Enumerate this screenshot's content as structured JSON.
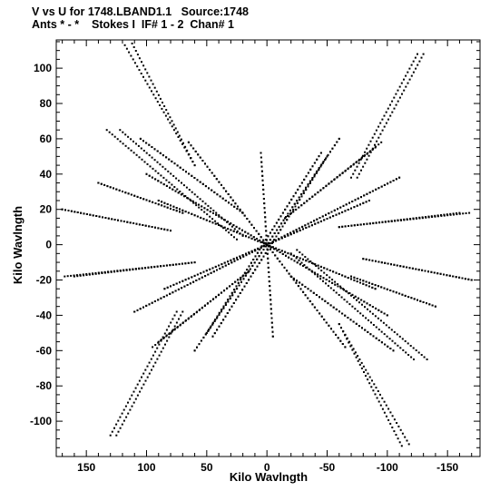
{
  "header": {
    "title_line1": "V vs U for 1748.LBAND1.1   Source:1748",
    "title_line2": "Ants * - *    Stokes I  IF# 1 - 2  Chan# 1"
  },
  "colors": {
    "points": "#000000",
    "axes": "#000000",
    "background": "#ffffff"
  },
  "chart_data": {
    "type": "scatter",
    "title": "V vs U for 1748.LBAND1.1   Source:1748",
    "subtitle": "Ants * - *    Stokes I  IF# 1 - 2  Chan# 1",
    "xlabel": "Kilo Wavlngth",
    "ylabel": "Kilo Wavlngth",
    "xlim": [
      175,
      -177
    ],
    "ylim": [
      -120,
      116
    ],
    "x_ticks": [
      150,
      100,
      50,
      0,
      -50,
      -100,
      -150
    ],
    "x_tick_labels": [
      "150",
      "100",
      "50",
      "0",
      "-50",
      "-100",
      "-150"
    ],
    "y_ticks": [
      100,
      80,
      60,
      40,
      20,
      0,
      -20,
      -40,
      -60,
      -80,
      -100
    ],
    "y_tick_labels": [
      "100",
      "80",
      "60",
      "40",
      "20",
      "0",
      "-20",
      "-40",
      "-60",
      "-80",
      "-100"
    ],
    "grid": false,
    "legend": "none",
    "symmetry": "point-symmetric: every (u, v) also plotted at (-u, -v)",
    "tracks": [
      {
        "from": [
          112,
          114
        ],
        "to": [
          60,
          45
        ]
      },
      {
        "from": [
          -130,
          108
        ],
        "to": [
          -75,
          38
        ]
      },
      {
        "from": [
          125,
          -108
        ],
        "to": [
          70,
          -38
        ]
      },
      {
        "from": [
          -118,
          -113
        ],
        "to": [
          -60,
          -45
        ]
      },
      {
        "from": [
          122,
          65
        ],
        "to": [
          20,
          5
        ]
      },
      {
        "from": [
          -133,
          -65
        ],
        "to": [
          -25,
          -3
        ]
      },
      {
        "from": [
          170,
          20
        ],
        "to": [
          80,
          8
        ]
      },
      {
        "from": [
          -170,
          -20
        ],
        "to": [
          -80,
          -8
        ]
      },
      {
        "from": [
          160,
          -18
        ],
        "to": [
          60,
          -10
        ]
      },
      {
        "from": [
          -168,
          18
        ],
        "to": [
          -60,
          10
        ]
      },
      {
        "from": [
          105,
          60
        ],
        "to": [
          20,
          18
        ]
      },
      {
        "from": [
          -105,
          -60
        ],
        "to": [
          -20,
          -18
        ]
      },
      {
        "from": [
          90,
          -55
        ],
        "to": [
          15,
          -15
        ]
      },
      {
        "from": [
          -95,
          58
        ],
        "to": [
          -15,
          15
        ]
      },
      {
        "from": [
          -45,
          52
        ],
        "to": [
          50,
          -50
        ]
      },
      {
        "from": [
          45,
          -52
        ],
        "to": [
          -50,
          50
        ]
      },
      {
        "from": [
          5,
          52
        ],
        "to": [
          -5,
          -52
        ]
      },
      {
        "from": [
          90,
          25
        ],
        "to": [
          -90,
          -25
        ]
      },
      {
        "from": [
          85,
          -25
        ],
        "to": [
          -85,
          25
        ]
      },
      {
        "from": [
          140,
          35
        ],
        "to": [
          70,
          18
        ]
      },
      {
        "from": [
          -140,
          -35
        ],
        "to": [
          -70,
          -18
        ]
      },
      {
        "from": [
          -60,
          60
        ],
        "to": [
          60,
          -60
        ]
      },
      {
        "from": [
          65,
          58
        ],
        "to": [
          -65,
          -58
        ]
      },
      {
        "from": [
          100,
          40
        ],
        "to": [
          -100,
          -40
        ]
      },
      {
        "from": [
          110,
          -38
        ],
        "to": [
          -110,
          38
        ]
      }
    ]
  }
}
